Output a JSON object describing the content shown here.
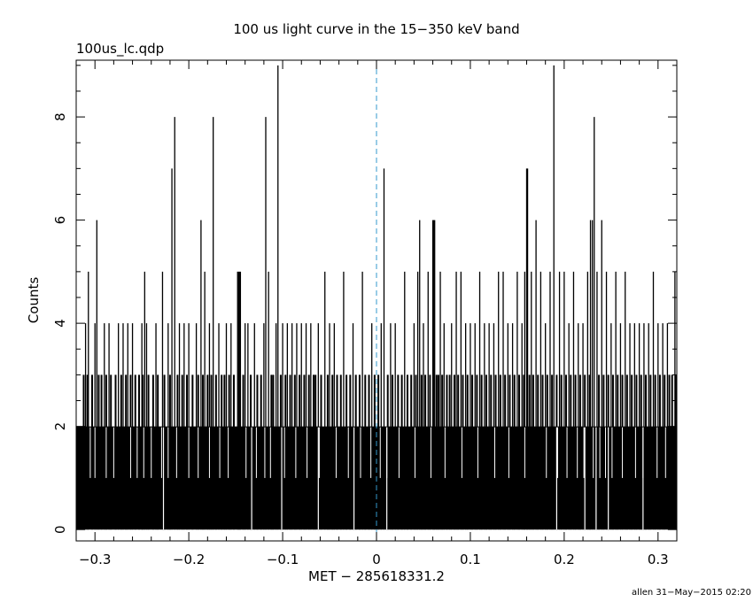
{
  "chart_data": {
    "type": "bar",
    "title": "100 us light curve in the 15−350 keV band",
    "subtitle": "100us_lc.qdp",
    "xlabel": "MET − 285618331.2",
    "ylabel": "Counts",
    "footer": "allen 31−May−2015 02:20",
    "xlim": [
      -0.32,
      0.32
    ],
    "ylim": [
      -0.22,
      9.1
    ],
    "x_ticks": [
      -0.3,
      -0.2,
      -0.1,
      0,
      0.1,
      0.2,
      0.3
    ],
    "x_tick_labels": [
      "−0.3",
      "−0.2",
      "−0.1",
      "0",
      "0.1",
      "0.2",
      "0.3"
    ],
    "y_ticks": [
      0,
      2,
      4,
      6,
      8
    ],
    "y_tick_labels": [
      "0",
      "2",
      "4",
      "6",
      "8"
    ],
    "bin_width": 0.0001,
    "baseline_level": 2,
    "marker_line": {
      "x": 0,
      "color": "#3399cc",
      "style": "dashed"
    },
    "bar_color": "#000000",
    "spikes": [
      {
        "x": -0.31,
        "y": 4
      },
      {
        "x": -0.307,
        "y": 5
      },
      {
        "x": -0.3,
        "y": 4
      },
      {
        "x": -0.298,
        "y": 6
      },
      {
        "x": -0.29,
        "y": 4
      },
      {
        "x": -0.285,
        "y": 4
      },
      {
        "x": -0.275,
        "y": 4
      },
      {
        "x": -0.27,
        "y": 4
      },
      {
        "x": -0.265,
        "y": 4
      },
      {
        "x": -0.26,
        "y": 4
      },
      {
        "x": -0.25,
        "y": 4
      },
      {
        "x": -0.247,
        "y": 5
      },
      {
        "x": -0.245,
        "y": 4
      },
      {
        "x": -0.235,
        "y": 4
      },
      {
        "x": -0.228,
        "y": 5
      },
      {
        "x": -0.222,
        "y": 4
      },
      {
        "x": -0.218,
        "y": 7
      },
      {
        "x": -0.215,
        "y": 8
      },
      {
        "x": -0.21,
        "y": 4
      },
      {
        "x": -0.205,
        "y": 4
      },
      {
        "x": -0.2,
        "y": 4
      },
      {
        "x": -0.192,
        "y": 4
      },
      {
        "x": -0.187,
        "y": 6
      },
      {
        "x": -0.183,
        "y": 5
      },
      {
        "x": -0.178,
        "y": 4
      },
      {
        "x": -0.174,
        "y": 8
      },
      {
        "x": -0.168,
        "y": 4
      },
      {
        "x": -0.16,
        "y": 4
      },
      {
        "x": -0.155,
        "y": 4
      },
      {
        "x": -0.148,
        "y": 5
      },
      {
        "x": -0.147,
        "y": 5
      },
      {
        "x": -0.146,
        "y": 5
      },
      {
        "x": -0.145,
        "y": 5
      },
      {
        "x": -0.14,
        "y": 4
      },
      {
        "x": -0.137,
        "y": 4
      },
      {
        "x": -0.13,
        "y": 4
      },
      {
        "x": -0.12,
        "y": 4
      },
      {
        "x": -0.118,
        "y": 8
      },
      {
        "x": -0.115,
        "y": 5
      },
      {
        "x": -0.107,
        "y": 4
      },
      {
        "x": -0.105,
        "y": 9
      },
      {
        "x": -0.1,
        "y": 4
      },
      {
        "x": -0.095,
        "y": 4
      },
      {
        "x": -0.09,
        "y": 4
      },
      {
        "x": -0.085,
        "y": 4
      },
      {
        "x": -0.08,
        "y": 4
      },
      {
        "x": -0.075,
        "y": 4
      },
      {
        "x": -0.07,
        "y": 4
      },
      {
        "x": -0.062,
        "y": 4
      },
      {
        "x": -0.055,
        "y": 5
      },
      {
        "x": -0.05,
        "y": 4
      },
      {
        "x": -0.045,
        "y": 4
      },
      {
        "x": -0.035,
        "y": 5
      },
      {
        "x": -0.025,
        "y": 4
      },
      {
        "x": -0.015,
        "y": 5
      },
      {
        "x": -0.005,
        "y": 4
      },
      {
        "x": 0.005,
        "y": 4
      },
      {
        "x": 0.008,
        "y": 7
      },
      {
        "x": 0.015,
        "y": 4
      },
      {
        "x": 0.02,
        "y": 4
      },
      {
        "x": 0.03,
        "y": 5
      },
      {
        "x": 0.04,
        "y": 4
      },
      {
        "x": 0.044,
        "y": 5
      },
      {
        "x": 0.046,
        "y": 6
      },
      {
        "x": 0.05,
        "y": 4
      },
      {
        "x": 0.055,
        "y": 5
      },
      {
        "x": 0.06,
        "y": 6
      },
      {
        "x": 0.061,
        "y": 6
      },
      {
        "x": 0.062,
        "y": 6
      },
      {
        "x": 0.068,
        "y": 5
      },
      {
        "x": 0.072,
        "y": 4
      },
      {
        "x": 0.08,
        "y": 4
      },
      {
        "x": 0.085,
        "y": 5
      },
      {
        "x": 0.09,
        "y": 5
      },
      {
        "x": 0.095,
        "y": 4
      },
      {
        "x": 0.1,
        "y": 4
      },
      {
        "x": 0.105,
        "y": 4
      },
      {
        "x": 0.11,
        "y": 5
      },
      {
        "x": 0.115,
        "y": 4
      },
      {
        "x": 0.12,
        "y": 4
      },
      {
        "x": 0.125,
        "y": 4
      },
      {
        "x": 0.13,
        "y": 5
      },
      {
        "x": 0.135,
        "y": 5
      },
      {
        "x": 0.14,
        "y": 4
      },
      {
        "x": 0.145,
        "y": 4
      },
      {
        "x": 0.15,
        "y": 5
      },
      {
        "x": 0.155,
        "y": 4
      },
      {
        "x": 0.158,
        "y": 5
      },
      {
        "x": 0.16,
        "y": 7
      },
      {
        "x": 0.161,
        "y": 7
      },
      {
        "x": 0.165,
        "y": 5
      },
      {
        "x": 0.17,
        "y": 6
      },
      {
        "x": 0.175,
        "y": 5
      },
      {
        "x": 0.18,
        "y": 4
      },
      {
        "x": 0.185,
        "y": 5
      },
      {
        "x": 0.189,
        "y": 9
      },
      {
        "x": 0.195,
        "y": 5
      },
      {
        "x": 0.2,
        "y": 5
      },
      {
        "x": 0.205,
        "y": 4
      },
      {
        "x": 0.21,
        "y": 5
      },
      {
        "x": 0.215,
        "y": 4
      },
      {
        "x": 0.22,
        "y": 4
      },
      {
        "x": 0.225,
        "y": 5
      },
      {
        "x": 0.228,
        "y": 6
      },
      {
        "x": 0.23,
        "y": 6
      },
      {
        "x": 0.232,
        "y": 8
      },
      {
        "x": 0.235,
        "y": 5
      },
      {
        "x": 0.24,
        "y": 6
      },
      {
        "x": 0.245,
        "y": 5
      },
      {
        "x": 0.25,
        "y": 4
      },
      {
        "x": 0.255,
        "y": 5
      },
      {
        "x": 0.26,
        "y": 4
      },
      {
        "x": 0.265,
        "y": 5
      },
      {
        "x": 0.27,
        "y": 4
      },
      {
        "x": 0.275,
        "y": 4
      },
      {
        "x": 0.28,
        "y": 4
      },
      {
        "x": 0.285,
        "y": 4
      },
      {
        "x": 0.29,
        "y": 4
      },
      {
        "x": 0.295,
        "y": 5
      },
      {
        "x": 0.3,
        "y": 4
      },
      {
        "x": 0.305,
        "y": 4
      },
      {
        "x": 0.31,
        "y": 4
      },
      {
        "x": 0.318,
        "y": 5
      }
    ],
    "threes": [
      -0.312,
      -0.308,
      -0.303,
      -0.296,
      -0.293,
      -0.288,
      -0.283,
      -0.278,
      -0.272,
      -0.267,
      -0.262,
      -0.257,
      -0.253,
      -0.249,
      -0.243,
      -0.238,
      -0.233,
      -0.226,
      -0.22,
      -0.212,
      -0.207,
      -0.202,
      -0.196,
      -0.19,
      -0.185,
      -0.18,
      -0.176,
      -0.171,
      -0.165,
      -0.162,
      -0.157,
      -0.152,
      -0.142,
      -0.134,
      -0.127,
      -0.123,
      -0.112,
      -0.11,
      -0.102,
      -0.097,
      -0.092,
      -0.087,
      -0.082,
      -0.077,
      -0.072,
      -0.067,
      -0.065,
      -0.059,
      -0.052,
      -0.047,
      -0.042,
      -0.038,
      -0.032,
      -0.028,
      -0.022,
      -0.018,
      -0.012,
      -0.008,
      -0.002,
      0.002,
      0.012,
      0.017,
      0.023,
      0.027,
      0.033,
      0.037,
      0.042,
      0.048,
      0.052,
      0.057,
      0.064,
      0.066,
      0.07,
      0.075,
      0.078,
      0.083,
      0.087,
      0.092,
      0.097,
      0.102,
      0.107,
      0.112,
      0.117,
      0.122,
      0.127,
      0.132,
      0.137,
      0.142,
      0.147,
      0.152,
      0.157,
      0.163,
      0.167,
      0.172,
      0.177,
      0.182,
      0.187,
      0.192,
      0.197,
      0.202,
      0.207,
      0.212,
      0.217,
      0.222,
      0.227,
      0.237,
      0.242,
      0.247,
      0.252,
      0.257,
      0.262,
      0.267,
      0.272,
      0.277,
      0.282,
      0.287,
      0.292,
      0.297,
      0.302,
      0.307,
      0.312,
      0.315,
      0.319
    ],
    "ones": [
      -0.305,
      -0.3,
      -0.288,
      -0.28,
      -0.262,
      -0.255,
      -0.248,
      -0.24,
      -0.229,
      -0.222,
      -0.213,
      -0.2,
      -0.19,
      -0.178,
      -0.167,
      -0.158,
      -0.139,
      -0.128,
      -0.119,
      -0.113,
      -0.098,
      -0.086,
      -0.074,
      -0.061,
      -0.043,
      -0.03,
      -0.017,
      -0.006,
      0.004,
      0.011,
      0.024,
      0.041,
      0.058,
      0.073,
      0.091,
      0.108,
      0.126,
      0.141,
      0.158,
      0.181,
      0.193,
      0.203,
      0.214,
      0.221,
      0.231,
      0.238,
      0.244,
      0.251,
      0.262,
      0.276,
      0.284,
      0.299,
      0.308
    ],
    "zeros": [
      -0.227,
      -0.133,
      -0.101,
      -0.062,
      -0.024,
      0.011,
      0.192,
      0.222,
      0.234,
      0.247,
      0.284
    ]
  }
}
